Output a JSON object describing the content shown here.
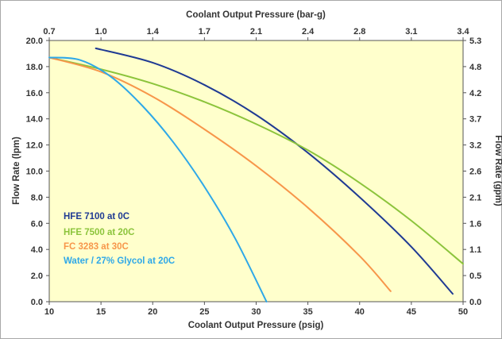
{
  "chart_data": {
    "type": "line",
    "title": "",
    "xlabel": "Coolant Output Pressure  (psig)",
    "x2label": "Coolant Output Pressure  (bar-g)",
    "ylabel": "Flow Rate (lpm)",
    "y2label": "Flow Rate (gpm)",
    "xlim": [
      10,
      50
    ],
    "ylim": [
      0,
      20
    ],
    "grid": false,
    "legend_position": "bottom-left",
    "plot_background": "#ffffcc",
    "x_ticks": [
      "10",
      "15",
      "20",
      "25",
      "30",
      "35",
      "40",
      "45",
      "50"
    ],
    "y_ticks": [
      "0.0",
      "2.0",
      "4.0",
      "6.0",
      "8.0",
      "10.0",
      "12.0",
      "14.0",
      "16.0",
      "18.0",
      "20.0"
    ],
    "x2_ticks": [
      "0.7",
      "1.0",
      "1.4",
      "1.7",
      "2.1",
      "2.4",
      "2.8",
      "3.1",
      "3.4"
    ],
    "y2_ticks": [
      "0.0",
      "0.5",
      "1.1",
      "1.6",
      "2.1",
      "2.6",
      "3.2",
      "3.7",
      "4.2",
      "4.8",
      "5.3"
    ],
    "series": [
      {
        "name": "HFE 7100 at 0C",
        "color": "#1f3a93",
        "x": [
          14.5,
          20,
          25,
          30,
          35,
          40,
          45,
          49
        ],
        "y": [
          19.4,
          18.3,
          16.6,
          14.3,
          11.4,
          8.0,
          4.2,
          0.6
        ]
      },
      {
        "name": "HFE 7500 at 20C",
        "color": "#8cc43c",
        "x": [
          10,
          15,
          20,
          25,
          30,
          35,
          40,
          45,
          50
        ],
        "y": [
          18.7,
          17.8,
          16.7,
          15.3,
          13.6,
          11.6,
          9.1,
          6.2,
          2.9
        ]
      },
      {
        "name": "FC 3283 at 30C",
        "color": "#f7964a",
        "x": [
          10,
          15,
          20,
          25,
          30,
          35,
          40,
          43
        ],
        "y": [
          18.7,
          17.6,
          15.7,
          13.2,
          10.4,
          7.2,
          3.5,
          0.8
        ]
      },
      {
        "name": "Water / 27% Glycol at 20C",
        "color": "#2ea8e8",
        "x": [
          10,
          13,
          16,
          19,
          22,
          25,
          28,
          31
        ],
        "y": [
          18.7,
          18.5,
          17.2,
          15.0,
          12.2,
          8.8,
          4.8,
          0.0
        ]
      }
    ]
  }
}
